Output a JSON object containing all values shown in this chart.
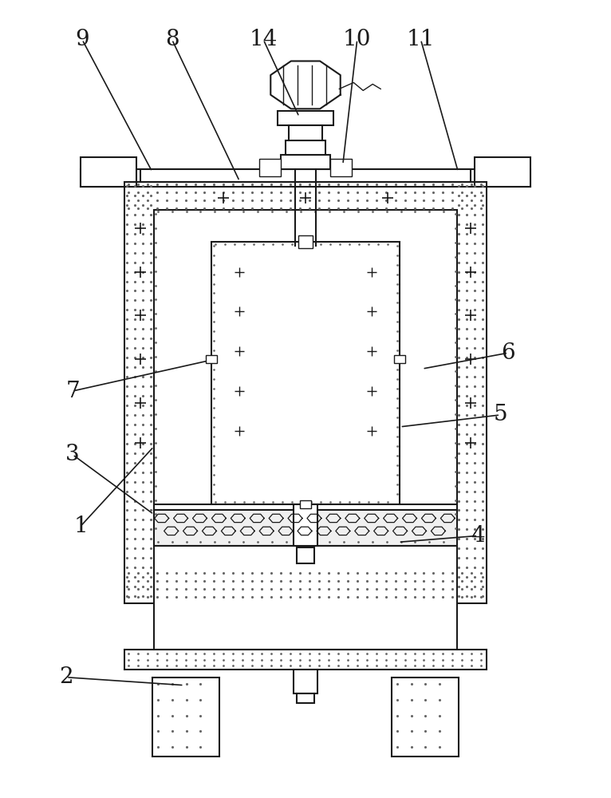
{
  "bg_color": "#ffffff",
  "line_color": "#1a1a1a",
  "dot_color": "#666666",
  "label_fontsize": 20,
  "figsize": [
    7.66,
    10.0
  ],
  "dpi": 100
}
